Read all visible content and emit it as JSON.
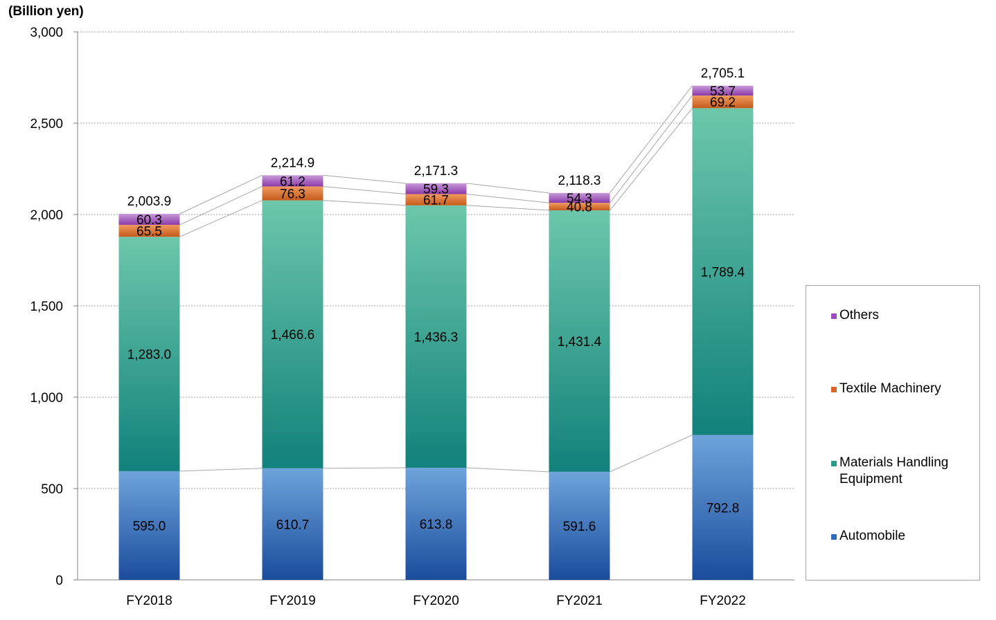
{
  "unit_label": "(Billion yen)",
  "chart_data": {
    "type": "bar",
    "stacked": true,
    "categories": [
      "FY2018",
      "FY2019",
      "FY2020",
      "FY2021",
      "FY2022"
    ],
    "series": [
      {
        "name": "Automobile",
        "values": [
          595.0,
          610.7,
          613.8,
          591.6,
          792.8
        ],
        "labels": [
          "595.0",
          "610.7",
          "613.8",
          "591.6",
          "792.8"
        ],
        "color_top": "#6fa3da",
        "color_bottom": "#1a4c9c"
      },
      {
        "name": "Materials Handling Equipment",
        "values": [
          1283.0,
          1466.6,
          1436.3,
          1431.4,
          1789.4
        ],
        "labels": [
          "1,283.0",
          "1,466.6",
          "1,436.3",
          "1,431.4",
          "1,789.4"
        ],
        "color_top": "#6cc7ab",
        "color_bottom": "#12817b"
      },
      {
        "name": "Textile Machinery",
        "values": [
          65.5,
          76.3,
          61.7,
          40.8,
          69.2
        ],
        "labels": [
          "65.5",
          "76.3",
          "61.7",
          "40.8",
          "69.2"
        ],
        "color_top": "#f09a5e",
        "color_bottom": "#c55a1c"
      },
      {
        "name": "Others",
        "values": [
          60.3,
          61.2,
          59.3,
          54.3,
          53.7
        ],
        "labels": [
          "60.3",
          "61.2",
          "59.3",
          "54.3",
          "53.7"
        ],
        "color_top": "#c79ad8",
        "color_bottom": "#8c3aa8"
      }
    ],
    "totals": [
      2003.9,
      2214.9,
      2171.3,
      2118.3,
      2705.1
    ],
    "total_labels": [
      "2,003.9",
      "2,214.9",
      "2,171.3",
      "2,118.3",
      "2,705.1"
    ],
    "ylim": [
      0,
      3000
    ],
    "yticks": [
      0,
      500,
      1000,
      1500,
      2000,
      2500,
      3000
    ],
    "ytick_labels": [
      "0",
      "500",
      "1,000",
      "1,500",
      "2,000",
      "2,500",
      "3,000"
    ],
    "grid": true,
    "legend_position": "right",
    "legend": [
      {
        "name": "Others",
        "color": "#9b4db8"
      },
      {
        "name": "Textile Machinery",
        "color": "#d9652a"
      },
      {
        "name": "Materials Handling Equipment",
        "color": "#2a9a86"
      },
      {
        "name": "Automobile",
        "color": "#2d6bb8"
      }
    ]
  }
}
